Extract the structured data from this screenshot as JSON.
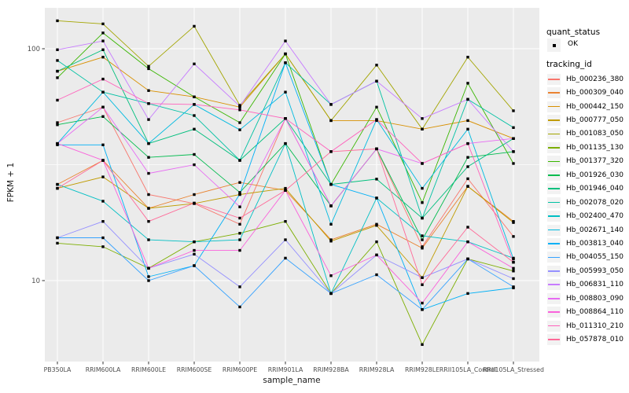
{
  "colors": {
    "panel_bg": "#EBEBEB",
    "gridline": "#FFFFFF",
    "tick_text": "#4D4D4D",
    "axis_title_text": "#1A1A1A",
    "legend_key_bg": "#F2F2F2",
    "point_marker": "#000000"
  },
  "legend": {
    "quant_status": {
      "title": "quant_status",
      "items": [
        {
          "label": "OK",
          "marker": "black-point"
        }
      ]
    },
    "tracking_id": {
      "title": "tracking_id"
    }
  },
  "chart_data": {
    "type": "line",
    "title": "",
    "xlabel": "sample_name",
    "ylabel": "FPKM + 1",
    "yscale": "log10",
    "ylim": [
      4.5,
      155
    ],
    "yticks": [
      100,
      10
    ],
    "ytick_labels": [
      "100",
      "10"
    ],
    "minor_gridlines": [
      31.6
    ],
    "grid": true,
    "legend_position": "right",
    "marker": {
      "shape": "small-black-square",
      "meaning": "quant_status = OK"
    },
    "categories": [
      "PB350LA",
      "RRIM600LA",
      "RRIM600LE",
      "RRIM600SE",
      "RRIM600PE",
      "RRIM901LA",
      "RRIM928BA",
      "RRIM928LA",
      "RRIM928LE",
      "RRII105LA_Control",
      "RRII105LA_Stressed"
    ],
    "series": [
      {
        "name": "Hb_000236_380",
        "color": "#F8766D",
        "values": [
          48,
          56,
          23.5,
          21.5,
          17.5,
          50,
          21,
          37,
          14,
          27.5,
          15.5
        ]
      },
      {
        "name": "Hb_000309_040",
        "color": "#EA8331",
        "values": [
          26,
          33,
          20.5,
          23.5,
          26.5,
          24.5,
          15,
          17.5,
          13.8,
          25.5,
          18
        ]
      },
      {
        "name": "Hb_000442_150",
        "color": "#D89000",
        "values": [
          80,
          92,
          66,
          62,
          56,
          95,
          49,
          49,
          45,
          49,
          41
        ]
      },
      {
        "name": "Hb_000777_050",
        "color": "#C09B00",
        "values": [
          25,
          28,
          20.5,
          21.5,
          23.5,
          25,
          14.8,
          17.3,
          10.3,
          25.5,
          17.8
        ]
      },
      {
        "name": "Hb_001083_050",
        "color": "#A3A500",
        "values": [
          132,
          128,
          84,
          125,
          57,
          95,
          49,
          85,
          45,
          92,
          54
        ]
      },
      {
        "name": "Hb_001135_130",
        "color": "#7CAE00",
        "values": [
          14.5,
          14,
          11.3,
          14.7,
          16,
          18,
          8.8,
          14.7,
          5.3,
          12.4,
          11
        ]
      },
      {
        "name": "Hb_001377_320",
        "color": "#39B600",
        "values": [
          75,
          117,
          82,
          62,
          48,
          95,
          26,
          56,
          21.7,
          71,
          32
        ]
      },
      {
        "name": "Hb_001926_030",
        "color": "#00BB4E",
        "values": [
          47,
          51,
          34,
          35,
          24,
          39,
          21,
          37,
          15,
          34,
          36
        ]
      },
      {
        "name": "Hb_001946_040",
        "color": "#00BF7D",
        "values": [
          80,
          99,
          39,
          45,
          33,
          50,
          26,
          27.4,
          18.6,
          31,
          41
        ]
      },
      {
        "name": "Hb_002078_020",
        "color": "#00C1A3",
        "values": [
          89,
          65,
          58,
          51.5,
          33,
          87,
          57.5,
          72.5,
          18.6,
          60.5,
          45.7
        ]
      },
      {
        "name": "Hb_002400_470",
        "color": "#00BFC4",
        "values": [
          26,
          22,
          15,
          14.7,
          15,
          39,
          8.8,
          22.7,
          15.6,
          14.7,
          12.5
        ]
      },
      {
        "name": "Hb_002671_140",
        "color": "#00BAE0",
        "values": [
          39,
          65,
          39,
          57.5,
          44.7,
          65,
          17.5,
          49.5,
          25,
          45,
          12.4
        ]
      },
      {
        "name": "Hb_003813_040",
        "color": "#00B0F6",
        "values": [
          38.5,
          38.5,
          10.4,
          11.6,
          23.6,
          87,
          26,
          22.7,
          7.5,
          8.8,
          9.3
        ]
      },
      {
        "name": "Hb_004055_150",
        "color": "#35A2FF",
        "values": [
          15.3,
          15.3,
          10,
          11.6,
          7.7,
          12.5,
          8.8,
          10.6,
          7.5,
          12.4,
          9.4
        ]
      },
      {
        "name": "Hb_005993_050",
        "color": "#9590FF",
        "values": [
          15.3,
          18,
          11.3,
          13,
          9.4,
          15,
          8.8,
          12.9,
          10.3,
          12.4,
          10.2
        ]
      },
      {
        "name": "Hb_006831_110",
        "color": "#C77CFF",
        "values": [
          99,
          108,
          49.5,
          86,
          56.5,
          108,
          57.5,
          72.5,
          50,
          60.5,
          36
        ]
      },
      {
        "name": "Hb_008803_090",
        "color": "#E76BF3",
        "values": [
          39,
          56,
          29,
          31.6,
          20.8,
          50,
          21,
          37,
          32,
          39,
          41
        ]
      },
      {
        "name": "Hb_008864_110",
        "color": "#FA62DB",
        "values": [
          39,
          33,
          11.3,
          13.5,
          13.5,
          24.5,
          10.5,
          12.9,
          8,
          14.7,
          11.3
        ]
      },
      {
        "name": "Hb_011310_210",
        "color": "#FF62BC",
        "values": [
          60,
          74,
          58,
          57.5,
          54.5,
          50,
          36,
          49.5,
          32,
          39,
          12
        ]
      },
      {
        "name": "Hb_057878_010",
        "color": "#FF6A98",
        "values": [
          25,
          33,
          18,
          21.6,
          18.6,
          24.5,
          36,
          37,
          9.6,
          17,
          12
        ]
      }
    ]
  }
}
